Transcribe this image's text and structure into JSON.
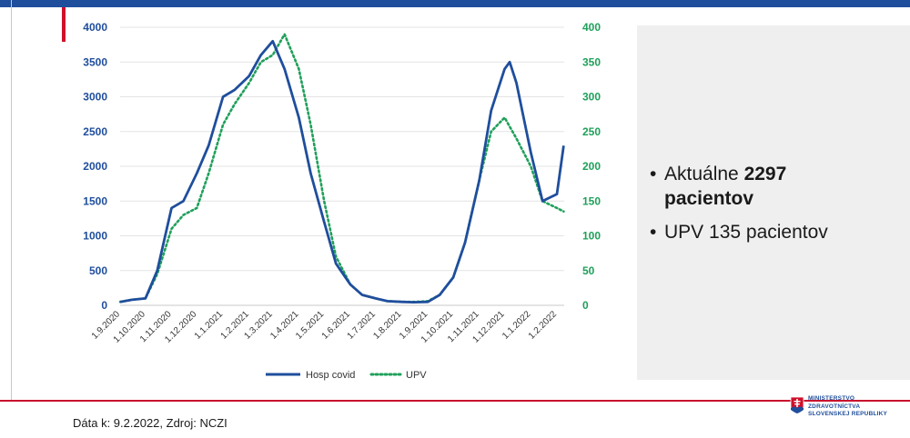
{
  "info": {
    "bullet1_prefix": "Aktuálne ",
    "bullet1_number": "2297",
    "bullet1_suffix": "pacientov",
    "bullet2": "UPV 135 pacientov"
  },
  "footer": {
    "source": "Dáta k: 9.2.2022, Zdroj: NCZI"
  },
  "logo": {
    "line1": "MINISTERSTVO",
    "line2": "ZDRAVOTNÍCTVA",
    "line3": "SLOVENSKEJ REPUBLIKY"
  },
  "colors": {
    "hosp": "#1f4e9c",
    "upv": "#1fa05a",
    "accent": "#d0102b"
  },
  "chart_data": {
    "type": "line",
    "x": [
      "1.9.2020",
      "1.10.2020",
      "1.11.2020",
      "1.12.2020",
      "1.1.2021",
      "1.2.2021",
      "1.3.2021",
      "1.4.2021",
      "1.5.2021",
      "1.6.2021",
      "1.7.2021",
      "1.8.2021",
      "1.9.2021",
      "1.10.2021",
      "1.11.2021",
      "1.12.2021",
      "1.1.2022",
      "1.2.2022"
    ],
    "ylim_left": [
      0,
      4000
    ],
    "ylim_right": [
      0,
      400
    ],
    "yticks_left": [
      0,
      500,
      1000,
      1500,
      2000,
      2500,
      3000,
      3500,
      4000
    ],
    "yticks_right": [
      0,
      50,
      100,
      150,
      200,
      250,
      300,
      350,
      400
    ],
    "legend_position": "bottom",
    "grid": true,
    "series": [
      {
        "name": "Hosp covid",
        "axis": "left",
        "values": [
          [
            "1.9.2020",
            50
          ],
          [
            "15.9.2020",
            80
          ],
          [
            "1.10.2020",
            100
          ],
          [
            "15.10.2020",
            500
          ],
          [
            "1.11.2020",
            1400
          ],
          [
            "15.11.2020",
            1500
          ],
          [
            "1.12.2020",
            1900
          ],
          [
            "15.12.2020",
            2300
          ],
          [
            "1.1.2021",
            3000
          ],
          [
            "15.1.2021",
            3100
          ],
          [
            "1.2.2021",
            3300
          ],
          [
            "15.2.2021",
            3600
          ],
          [
            "1.3.2021",
            3800
          ],
          [
            "15.3.2021",
            3400
          ],
          [
            "1.4.2021",
            2700
          ],
          [
            "15.4.2021",
            1900
          ],
          [
            "1.5.2021",
            1200
          ],
          [
            "15.5.2021",
            600
          ],
          [
            "1.6.2021",
            300
          ],
          [
            "15.6.2021",
            150
          ],
          [
            "1.7.2021",
            100
          ],
          [
            "15.7.2021",
            60
          ],
          [
            "1.8.2021",
            50
          ],
          [
            "15.8.2021",
            45
          ],
          [
            "1.9.2021",
            50
          ],
          [
            "15.9.2021",
            150
          ],
          [
            "1.10.2021",
            400
          ],
          [
            "15.10.2021",
            900
          ],
          [
            "1.11.2021",
            1800
          ],
          [
            "15.11.2021",
            2800
          ],
          [
            "1.12.2021",
            3400
          ],
          [
            "7.12.2021",
            3500
          ],
          [
            "15.12.2021",
            3200
          ],
          [
            "1.1.2022",
            2200
          ],
          [
            "15.1.2022",
            1500
          ],
          [
            "1.2.2022",
            1600
          ],
          [
            "9.2.2022",
            2297
          ]
        ]
      },
      {
        "name": "UPV",
        "axis": "right",
        "values": [
          [
            "1.9.2020",
            5
          ],
          [
            "15.9.2020",
            8
          ],
          [
            "1.10.2020",
            10
          ],
          [
            "15.10.2020",
            45
          ],
          [
            "1.11.2020",
            110
          ],
          [
            "15.11.2020",
            130
          ],
          [
            "1.12.2020",
            140
          ],
          [
            "15.12.2020",
            190
          ],
          [
            "1.1.2021",
            260
          ],
          [
            "15.1.2021",
            290
          ],
          [
            "1.2.2021",
            320
          ],
          [
            "15.2.2021",
            350
          ],
          [
            "1.3.2021",
            360
          ],
          [
            "15.3.2021",
            390
          ],
          [
            "1.4.2021",
            340
          ],
          [
            "15.4.2021",
            260
          ],
          [
            "1.5.2021",
            150
          ],
          [
            "15.5.2021",
            70
          ],
          [
            "1.6.2021",
            30
          ],
          [
            "15.6.2021",
            15
          ],
          [
            "1.7.2021",
            10
          ],
          [
            "15.7.2021",
            6
          ],
          [
            "1.8.2021",
            5
          ],
          [
            "15.8.2021",
            5
          ],
          [
            "1.9.2021",
            6
          ],
          [
            "15.9.2021",
            15
          ],
          [
            "1.10.2021",
            40
          ],
          [
            "15.10.2021",
            90
          ],
          [
            "1.11.2021",
            180
          ],
          [
            "15.11.2021",
            250
          ],
          [
            "1.12.2021",
            270
          ],
          [
            "15.12.2021",
            240
          ],
          [
            "1.1.2022",
            200
          ],
          [
            "15.1.2022",
            150
          ],
          [
            "1.2.2022",
            140
          ],
          [
            "9.2.2022",
            135
          ]
        ]
      }
    ]
  }
}
